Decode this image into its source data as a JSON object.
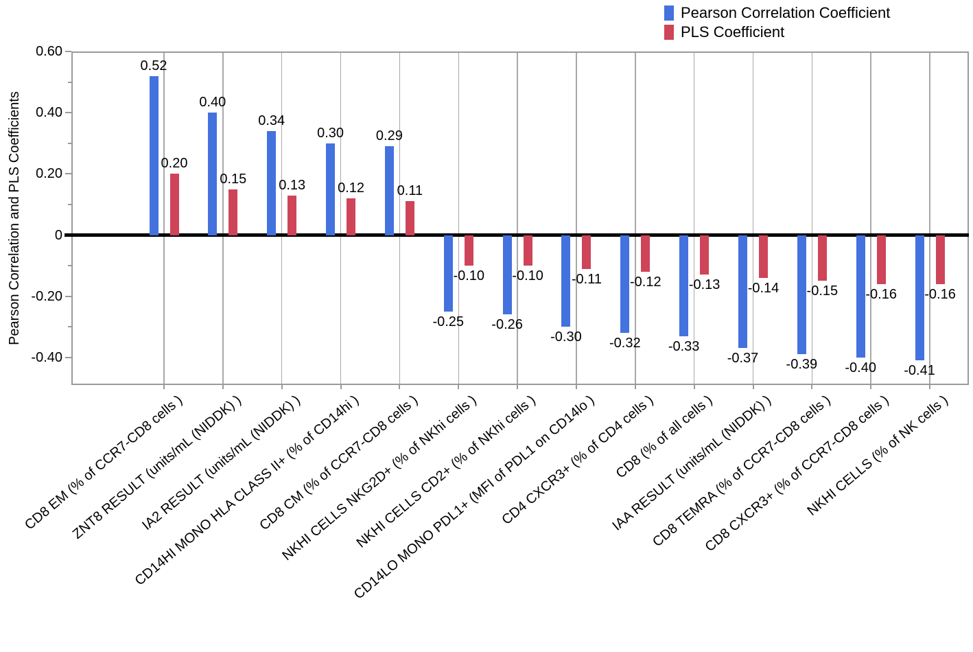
{
  "legend": {
    "items": [
      {
        "label": "Pearson Correlation Coefficient",
        "color": "#4371DE"
      },
      {
        "label": "PLS Coefficient",
        "color": "#CE4458"
      }
    ]
  },
  "colors": {
    "pearson_blue": "#4371DE",
    "pls_red": "#CE4458",
    "gridline_gray": "#A8A8A8",
    "frame_gray": "#9A9A9A",
    "zero_line_black": "#000000"
  },
  "chart_data": {
    "type": "bar",
    "title": "",
    "xlabel": "",
    "ylabel": "Pearson Correlation and PLS Coefficients",
    "ylim": [
      -0.49,
      0.6
    ],
    "grid": "vertical gridline at each category center",
    "legend_position": "top-right",
    "value_labels": true,
    "y_major_ticks": [
      {
        "value": 0.6,
        "label": "0.60"
      },
      {
        "value": 0.4,
        "label": "0.40"
      },
      {
        "value": 0.2,
        "label": "0.20"
      },
      {
        "value": 0,
        "label": "0"
      },
      {
        "value": -0.2,
        "label": "-0.20"
      },
      {
        "value": -0.4,
        "label": "-0.40"
      }
    ],
    "y_minor_ticks": [
      0.5,
      0.3,
      0.1,
      -0.1,
      -0.3
    ],
    "categories": [
      "CD8 EM (% of CCR7-CD8 cells )",
      "ZNT8 RESULT (units/mL (NIDDK) )",
      "IA2 RESULT (units/mL (NIDDK) )",
      "CD14HI MONO HLA CLASS II+ (% of CD14hi )",
      "CD8 CM (% of CCR7-CD8 cells )",
      "NKHI CELLS NKG2D+ (% of NKhi cells )",
      "NKHI CELLS CD2+ (% of NKhi cells )",
      "CD14LO MONO PDL1+ (MFI of PDL1 on CD14lo )",
      "CD4 CXCR3+ (% of CD4 cells )",
      "CD8 (% of all cells )",
      "IAA RESULT (units/mL (NIDDK) )",
      "CD8 TEMRA (% of CCR7-CD8 cells )",
      "CD8 CXCR3+ (% of CCR7-CD8 cells )",
      "NKHI CELLS (% of NK cells )"
    ],
    "series": [
      {
        "name": "Pearson Correlation Coefficient",
        "color": "#4371DE",
        "values": [
          0.52,
          0.4,
          0.34,
          0.3,
          0.29,
          -0.25,
          -0.26,
          -0.3,
          -0.32,
          -0.33,
          -0.37,
          -0.39,
          -0.4,
          -0.41
        ]
      },
      {
        "name": "PLS Coefficient",
        "color": "#CE4458",
        "values": [
          0.2,
          0.15,
          0.13,
          0.12,
          0.11,
          -0.1,
          -0.1,
          -0.11,
          -0.12,
          -0.13,
          -0.14,
          -0.15,
          -0.16,
          -0.16
        ]
      }
    ]
  }
}
